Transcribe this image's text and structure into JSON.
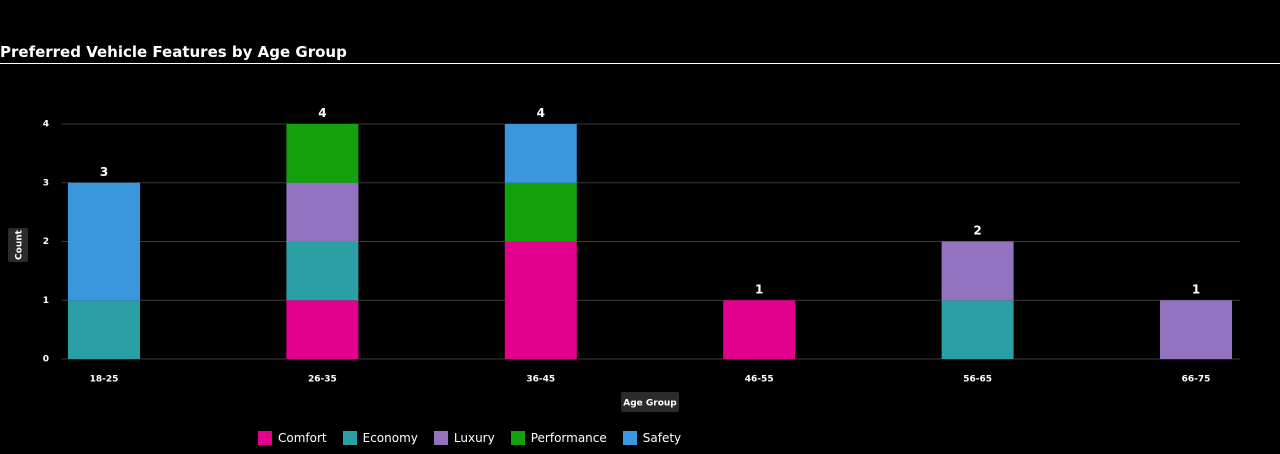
{
  "chart_data": {
    "type": "bar",
    "stacked": true,
    "title": "Preferred Vehicle Features by Age Group",
    "xlabel": "Age Group",
    "ylabel": "Count",
    "ylim": [
      0,
      4
    ],
    "yticks": [
      0,
      1,
      2,
      3,
      4
    ],
    "grid": true,
    "legend_position": "bottom",
    "categories": [
      "18-25",
      "26-35",
      "36-45",
      "46-55",
      "56-65",
      "66-75"
    ],
    "series": [
      {
        "name": "Comfort",
        "color": "#e3008c",
        "values": [
          0,
          1,
          2,
          1,
          0,
          0
        ]
      },
      {
        "name": "Economy",
        "color": "#2aa0a4",
        "values": [
          1,
          1,
          0,
          0,
          1,
          0
        ]
      },
      {
        "name": "Luxury",
        "color": "#9373c0",
        "values": [
          0,
          1,
          0,
          0,
          1,
          1
        ]
      },
      {
        "name": "Performance",
        "color": "#13a10e",
        "values": [
          0,
          1,
          1,
          0,
          0,
          0
        ]
      },
      {
        "name": "Safety",
        "color": "#3a96dd",
        "values": [
          2,
          0,
          1,
          0,
          0,
          0
        ]
      }
    ],
    "totals": [
      3,
      4,
      4,
      1,
      2,
      1
    ]
  }
}
